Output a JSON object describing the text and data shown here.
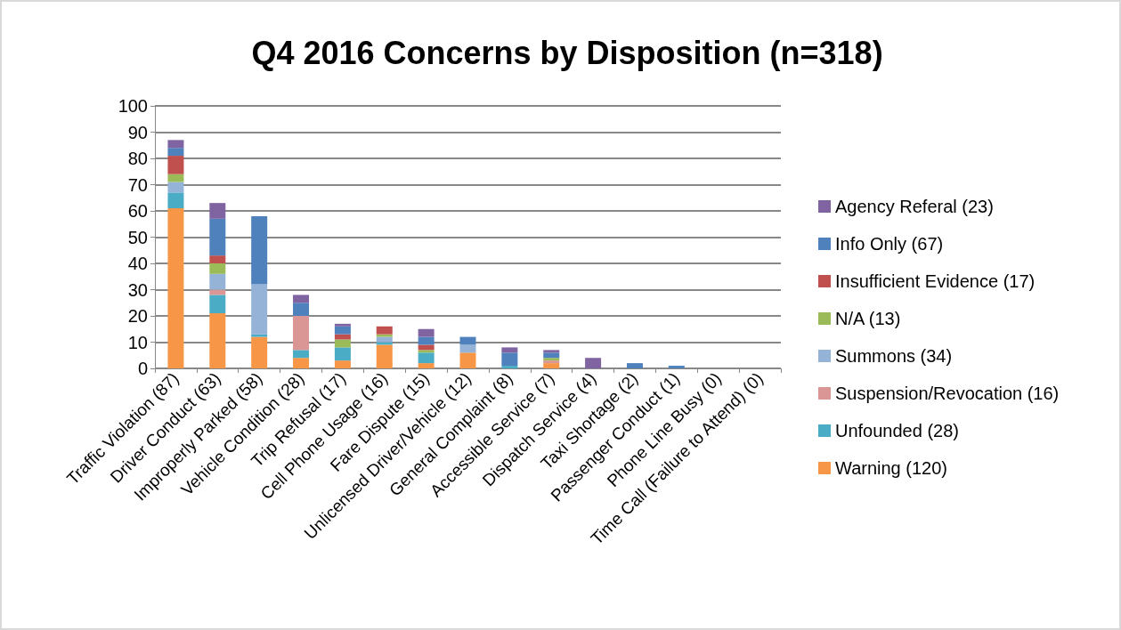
{
  "chart_data": {
    "type": "bar",
    "title": "Q4 2016 Concerns by Disposition (n=318)",
    "categories": [
      "Traffic Violation (87)",
      "Driver Conduct (63)",
      "Improperly Parked (58)",
      "Vehicle Condition (28)",
      "Trip Refusal (17)",
      "Cell Phone Usage (16)",
      "Fare Dispute (15)",
      "Unlicensed Driver/Vehicle (12)",
      "General Complaint (8)",
      "Accessible Service (7)",
      "Dispatch Service (4)",
      "Taxi Shortage (2)",
      "Passenger Conduct (1)",
      "Phone Line Busy (0)",
      "Time Call (Failure to Attend) (0)"
    ],
    "stacked": true,
    "series": [
      {
        "name": "Warning (120)",
        "color": "#f79646",
        "values": [
          61,
          21,
          12,
          4,
          3,
          9,
          2,
          6,
          0,
          2,
          0,
          0,
          0,
          0,
          0
        ]
      },
      {
        "name": "Unfounded (28)",
        "color": "#4bacc6",
        "values": [
          6,
          7,
          1,
          3,
          5,
          1,
          4,
          0,
          1,
          0,
          0,
          0,
          0,
          0,
          0
        ]
      },
      {
        "name": "Suspension/Revocation (16)",
        "color": "#d99694",
        "values": [
          0,
          2,
          0,
          13,
          0,
          0,
          0,
          0,
          0,
          1,
          0,
          0,
          0,
          0,
          0
        ]
      },
      {
        "name": "Summons (34)",
        "color": "#95b3d7",
        "values": [
          4,
          6,
          19,
          0,
          0,
          2,
          0,
          3,
          0,
          0,
          0,
          0,
          0,
          0,
          0
        ]
      },
      {
        "name": "N/A (13)",
        "color": "#9bbb59",
        "values": [
          3,
          4,
          0,
          0,
          3,
          1,
          1,
          0,
          0,
          1,
          0,
          0,
          0,
          0,
          0
        ]
      },
      {
        "name": "Insufficient Evidence (17)",
        "color": "#c0504d",
        "values": [
          7,
          3,
          0,
          0,
          2,
          3,
          2,
          0,
          0,
          0,
          0,
          0,
          0,
          0,
          0
        ]
      },
      {
        "name": "Info Only (67)",
        "color": "#4f81bd",
        "values": [
          3,
          14,
          26,
          5,
          3,
          0,
          3,
          3,
          5,
          2,
          0,
          2,
          1,
          0,
          0
        ]
      },
      {
        "name": "Agency Referal (23)",
        "color": "#8064a2",
        "values": [
          3,
          6,
          0,
          3,
          1,
          0,
          3,
          0,
          2,
          1,
          4,
          0,
          0,
          0,
          0
        ]
      }
    ],
    "ylim": [
      0,
      100
    ],
    "yticks": [
      0,
      10,
      20,
      30,
      40,
      50,
      60,
      70,
      80,
      90,
      100
    ],
    "grid": "y",
    "legend": "right"
  }
}
